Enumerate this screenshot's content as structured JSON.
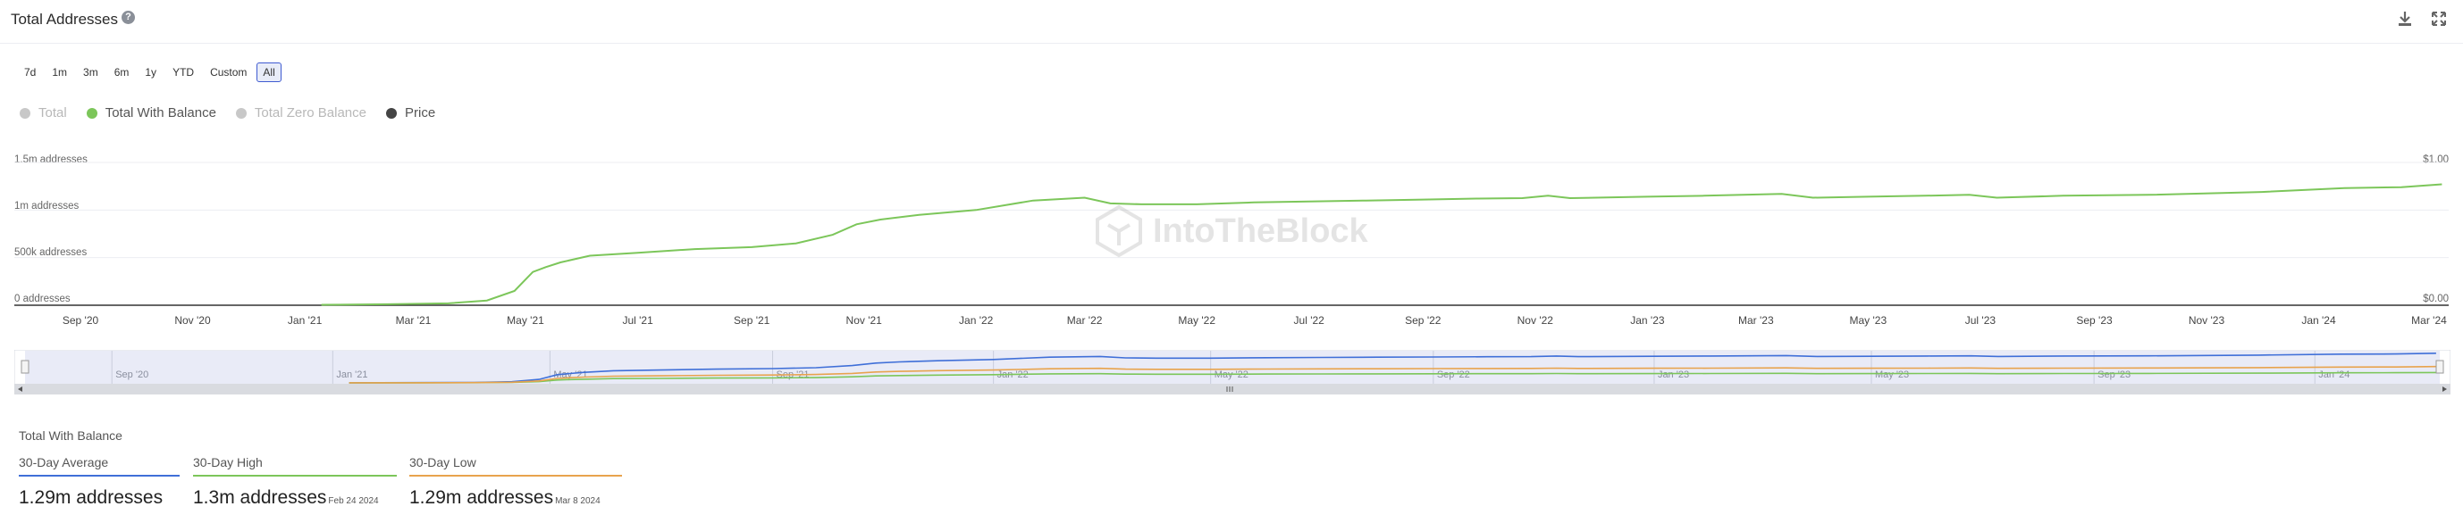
{
  "header": {
    "title": "Total Addresses",
    "help_glyph": "?",
    "download_icon": "download-icon",
    "expand_icon": "expand-icon"
  },
  "ranges": [
    "7d",
    "1m",
    "3m",
    "6m",
    "1y",
    "YTD",
    "Custom",
    "All"
  ],
  "active_range": "All",
  "legend": [
    {
      "label": "Total",
      "color": "#c8c8c8",
      "active": false
    },
    {
      "label": "Total With Balance",
      "color": "#7cc65a",
      "active": true
    },
    {
      "label": "Total Zero Balance",
      "color": "#c8c8c8",
      "active": false
    },
    {
      "label": "Price",
      "color": "#444444",
      "active": true
    }
  ],
  "watermark": "IntoTheBlock",
  "navigator": {
    "labels": [
      "Sep '20",
      "Jan '21",
      "May '21",
      "Sep '21",
      "Jan '22",
      "May '22",
      "Sep '22",
      "Jan '23",
      "May '23",
      "Sep '23",
      "Jan '24"
    ],
    "series_colors": [
      "#3f6fd8",
      "#7cc65a",
      "#e8a34d"
    ]
  },
  "chart_data": {
    "type": "line",
    "y_left_ticks": [
      "0 addresses",
      "500k addresses",
      "1m addresses",
      "1.5m addresses"
    ],
    "y_right_ticks": [
      "$0.00",
      "$1.00"
    ],
    "ylim": [
      0,
      1500000
    ],
    "x_ticks": [
      "Sep '20",
      "Nov '20",
      "Jan '21",
      "Mar '21",
      "May '21",
      "Jul '21",
      "Sep '21",
      "Nov '21",
      "Jan '22",
      "Mar '22",
      "May '22",
      "Jul '22",
      "Sep '22",
      "Nov '22",
      "Jan '23",
      "Mar '23",
      "May '23",
      "Jul '23",
      "Sep '23",
      "Nov '23",
      "Jan '24",
      "Mar '24"
    ],
    "series": [
      {
        "name": "Total With Balance",
        "color": "#7cc65a",
        "x": [
          "2021-01-10",
          "2021-02-15",
          "2021-03-20",
          "2021-04-10",
          "2021-04-25",
          "2021-05-05",
          "2021-05-12",
          "2021-05-20",
          "2021-06-05",
          "2021-07-01",
          "2021-08-01",
          "2021-09-01",
          "2021-09-25",
          "2021-10-15",
          "2021-10-28",
          "2021-11-10",
          "2021-12-01",
          "2022-01-01",
          "2022-02-01",
          "2022-03-01",
          "2022-03-15",
          "2022-04-01",
          "2022-05-01",
          "2022-06-01",
          "2022-07-01",
          "2022-08-01",
          "2022-09-01",
          "2022-10-01",
          "2022-10-25",
          "2022-11-08",
          "2022-11-20",
          "2023-01-01",
          "2023-02-01",
          "2023-03-15",
          "2023-04-01",
          "2023-05-01",
          "2023-06-01",
          "2023-06-25",
          "2023-07-10",
          "2023-08-15",
          "2023-10-01",
          "2023-12-01",
          "2024-01-15",
          "2024-02-15",
          "2024-03-08"
        ],
        "values": [
          5000,
          10000,
          20000,
          50000,
          150000,
          350000,
          400000,
          450000,
          520000,
          550000,
          590000,
          610000,
          650000,
          740000,
          850000,
          900000,
          950000,
          1000000,
          1100000,
          1130000,
          1070000,
          1060000,
          1060000,
          1080000,
          1090000,
          1100000,
          1110000,
          1120000,
          1125000,
          1150000,
          1125000,
          1140000,
          1150000,
          1170000,
          1130000,
          1140000,
          1150000,
          1160000,
          1130000,
          1150000,
          1160000,
          1190000,
          1230000,
          1240000,
          1270000
        ]
      }
    ]
  },
  "stats": {
    "title": "Total With Balance",
    "items": [
      {
        "label": "30-Day Average",
        "value": "1.29m addresses",
        "date": "",
        "color": "#3f6fd8"
      },
      {
        "label": "30-Day High",
        "value": "1.3m addresses",
        "date": "Feb 24 2024",
        "color": "#7cc65a"
      },
      {
        "label": "30-Day Low",
        "value": "1.29m addresses",
        "date": "Mar 8 2024",
        "color": "#e8a34d"
      }
    ]
  }
}
